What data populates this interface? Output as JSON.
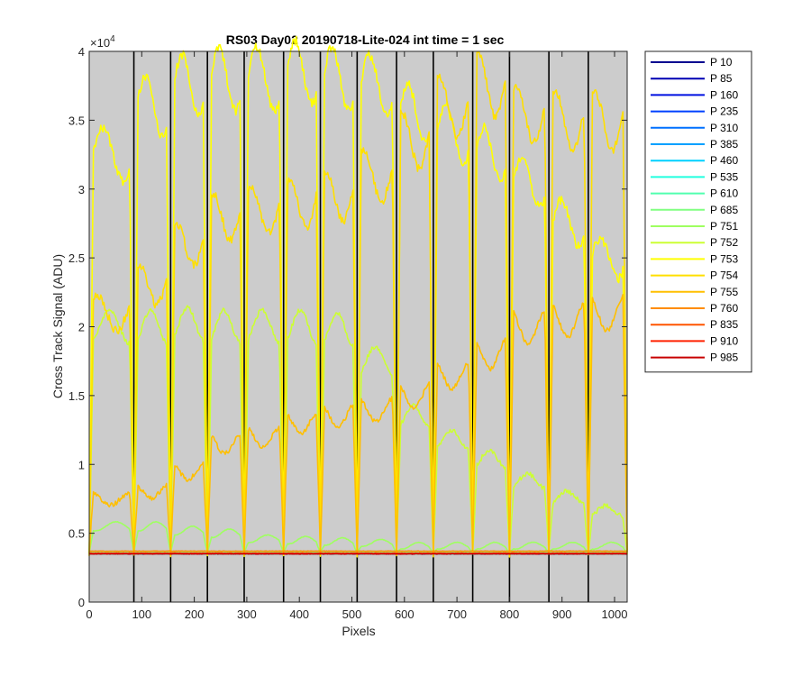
{
  "chart_data": {
    "type": "line",
    "title": "RS03 Day02 20190718-Lite-024 int time = 1 sec",
    "xlabel": "Pixels",
    "ylabel": "Cross Track Signal (ADU)",
    "xlim": [
      0,
      1024
    ],
    "ylim": [
      0,
      40000
    ],
    "y_exponent_label": "×10",
    "y_exponent_power": "4",
    "xticks": [
      0,
      100,
      200,
      300,
      400,
      500,
      600,
      700,
      800,
      900,
      1000
    ],
    "xtick_labels": [
      "0",
      "100",
      "200",
      "300",
      "400",
      "500",
      "600",
      "700",
      "800",
      "900",
      "1000"
    ],
    "yticks": [
      0,
      5000,
      10000,
      15000,
      20000,
      25000,
      30000,
      35000,
      40000
    ],
    "ytick_labels": [
      "0",
      "0.5",
      "1",
      "1.5",
      "2",
      "2.5",
      "3",
      "3.5",
      "4"
    ],
    "plot_background": "#cccccc",
    "legend_position": "outside-top-right",
    "grid": false,
    "segment_boundaries": [
      85,
      155,
      225,
      295,
      370,
      440,
      510,
      585,
      655,
      730,
      800,
      875,
      950
    ],
    "segment_order": [
      0,
      1,
      2,
      3,
      4,
      5,
      6,
      7,
      8,
      9,
      10,
      11,
      12,
      13
    ],
    "series": [
      {
        "name": "P 10",
        "color": "#00008f",
        "levels": [
          3500,
          3500,
          3500,
          3500,
          3500,
          3500,
          3500,
          3500,
          3500,
          3500,
          3500,
          3500,
          3500,
          3500
        ]
      },
      {
        "name": "P 85",
        "color": "#0000b3",
        "levels": [
          3500,
          3500,
          3500,
          3500,
          3500,
          3500,
          3500,
          3500,
          3500,
          3500,
          3500,
          3500,
          3500,
          3500
        ]
      },
      {
        "name": "P 160",
        "color": "#0010e0",
        "levels": [
          3500,
          3500,
          3500,
          3500,
          3500,
          3500,
          3500,
          3500,
          3500,
          3500,
          3500,
          3500,
          3500,
          3500
        ]
      },
      {
        "name": "P 235",
        "color": "#0040ff",
        "levels": [
          3500,
          3500,
          3500,
          3500,
          3500,
          3500,
          3500,
          3500,
          3500,
          3500,
          3500,
          3500,
          3500,
          3500
        ]
      },
      {
        "name": "P 310",
        "color": "#0070ff",
        "levels": [
          3500,
          3500,
          3500,
          3500,
          3500,
          3500,
          3500,
          3500,
          3500,
          3500,
          3500,
          3500,
          3500,
          3500
        ]
      },
      {
        "name": "P 385",
        "color": "#00a0ff",
        "levels": [
          3500,
          3500,
          3500,
          3500,
          3500,
          3500,
          3500,
          3500,
          3500,
          3500,
          3500,
          3500,
          3500,
          3500
        ]
      },
      {
        "name": "P 460",
        "color": "#00d0ff",
        "levels": [
          3500,
          3500,
          3500,
          3500,
          3500,
          3500,
          3500,
          3500,
          3500,
          3500,
          3500,
          3500,
          3500,
          3500
        ]
      },
      {
        "name": "P 535",
        "color": "#20ffdf",
        "levels": [
          3500,
          3500,
          3500,
          3500,
          3500,
          3500,
          3500,
          3500,
          3500,
          3500,
          3500,
          3500,
          3500,
          3500
        ]
      },
      {
        "name": "P 610",
        "color": "#50ffaf",
        "levels": [
          3500,
          3500,
          3500,
          3500,
          3500,
          3500,
          3500,
          3500,
          3500,
          3500,
          3500,
          3500,
          3500,
          3500
        ]
      },
      {
        "name": "P 685",
        "color": "#80ff80",
        "levels": [
          3600,
          3600,
          3600,
          3600,
          3600,
          3600,
          3600,
          3600,
          3600,
          3600,
          3600,
          3600,
          3600,
          3600
        ]
      },
      {
        "name": "P 751",
        "color": "#9fff60",
        "levels": [
          5500,
          5500,
          5200,
          5000,
          4600,
          4500,
          4400,
          4300,
          4100,
          4100,
          4100,
          4100,
          4100,
          4100
        ]
      },
      {
        "name": "P 752",
        "color": "#ccff33",
        "levels": [
          20000,
          20000,
          20200,
          20000,
          20000,
          20000,
          19800,
          17500,
          13500,
          11800,
          10400,
          8800,
          7600,
          6600
        ]
      },
      {
        "name": "P 753",
        "color": "#ffff00",
        "levels": [
          32500,
          36000,
          37500,
          38000,
          38000,
          38500,
          38000,
          37500,
          35500,
          34000,
          32500,
          30500,
          27500,
          25000
        ]
      },
      {
        "name": "P 754",
        "color": "#ffdf00",
        "levels": [
          21000,
          23000,
          26000,
          28000,
          28500,
          29000,
          29500,
          31000,
          33500,
          36000,
          37500,
          35500,
          35000,
          35000
        ]
      },
      {
        "name": "P 755",
        "color": "#ffbf00",
        "levels": [
          7500,
          8000,
          9500,
          11500,
          12000,
          13000,
          13500,
          14000,
          15000,
          16500,
          18000,
          20000,
          20500,
          21000
        ]
      },
      {
        "name": "P 760",
        "color": "#ff8c00",
        "levels": [
          3700,
          3700,
          3700,
          3700,
          3700,
          3700,
          3700,
          3700,
          3700,
          3700,
          3700,
          3700,
          3700,
          3700
        ]
      },
      {
        "name": "P 835",
        "color": "#ff5500",
        "levels": [
          3550,
          3550,
          3550,
          3550,
          3550,
          3550,
          3550,
          3550,
          3550,
          3550,
          3550,
          3550,
          3550,
          3550
        ]
      },
      {
        "name": "P 910",
        "color": "#ff2000",
        "levels": [
          3520,
          3520,
          3520,
          3520,
          3520,
          3520,
          3520,
          3520,
          3520,
          3520,
          3520,
          3520,
          3520,
          3520
        ]
      },
      {
        "name": "P 985",
        "color": "#c80000",
        "levels": [
          3500,
          3500,
          3500,
          3500,
          3500,
          3500,
          3500,
          3500,
          3500,
          3500,
          3500,
          3500,
          3500,
          3500
        ]
      }
    ]
  }
}
